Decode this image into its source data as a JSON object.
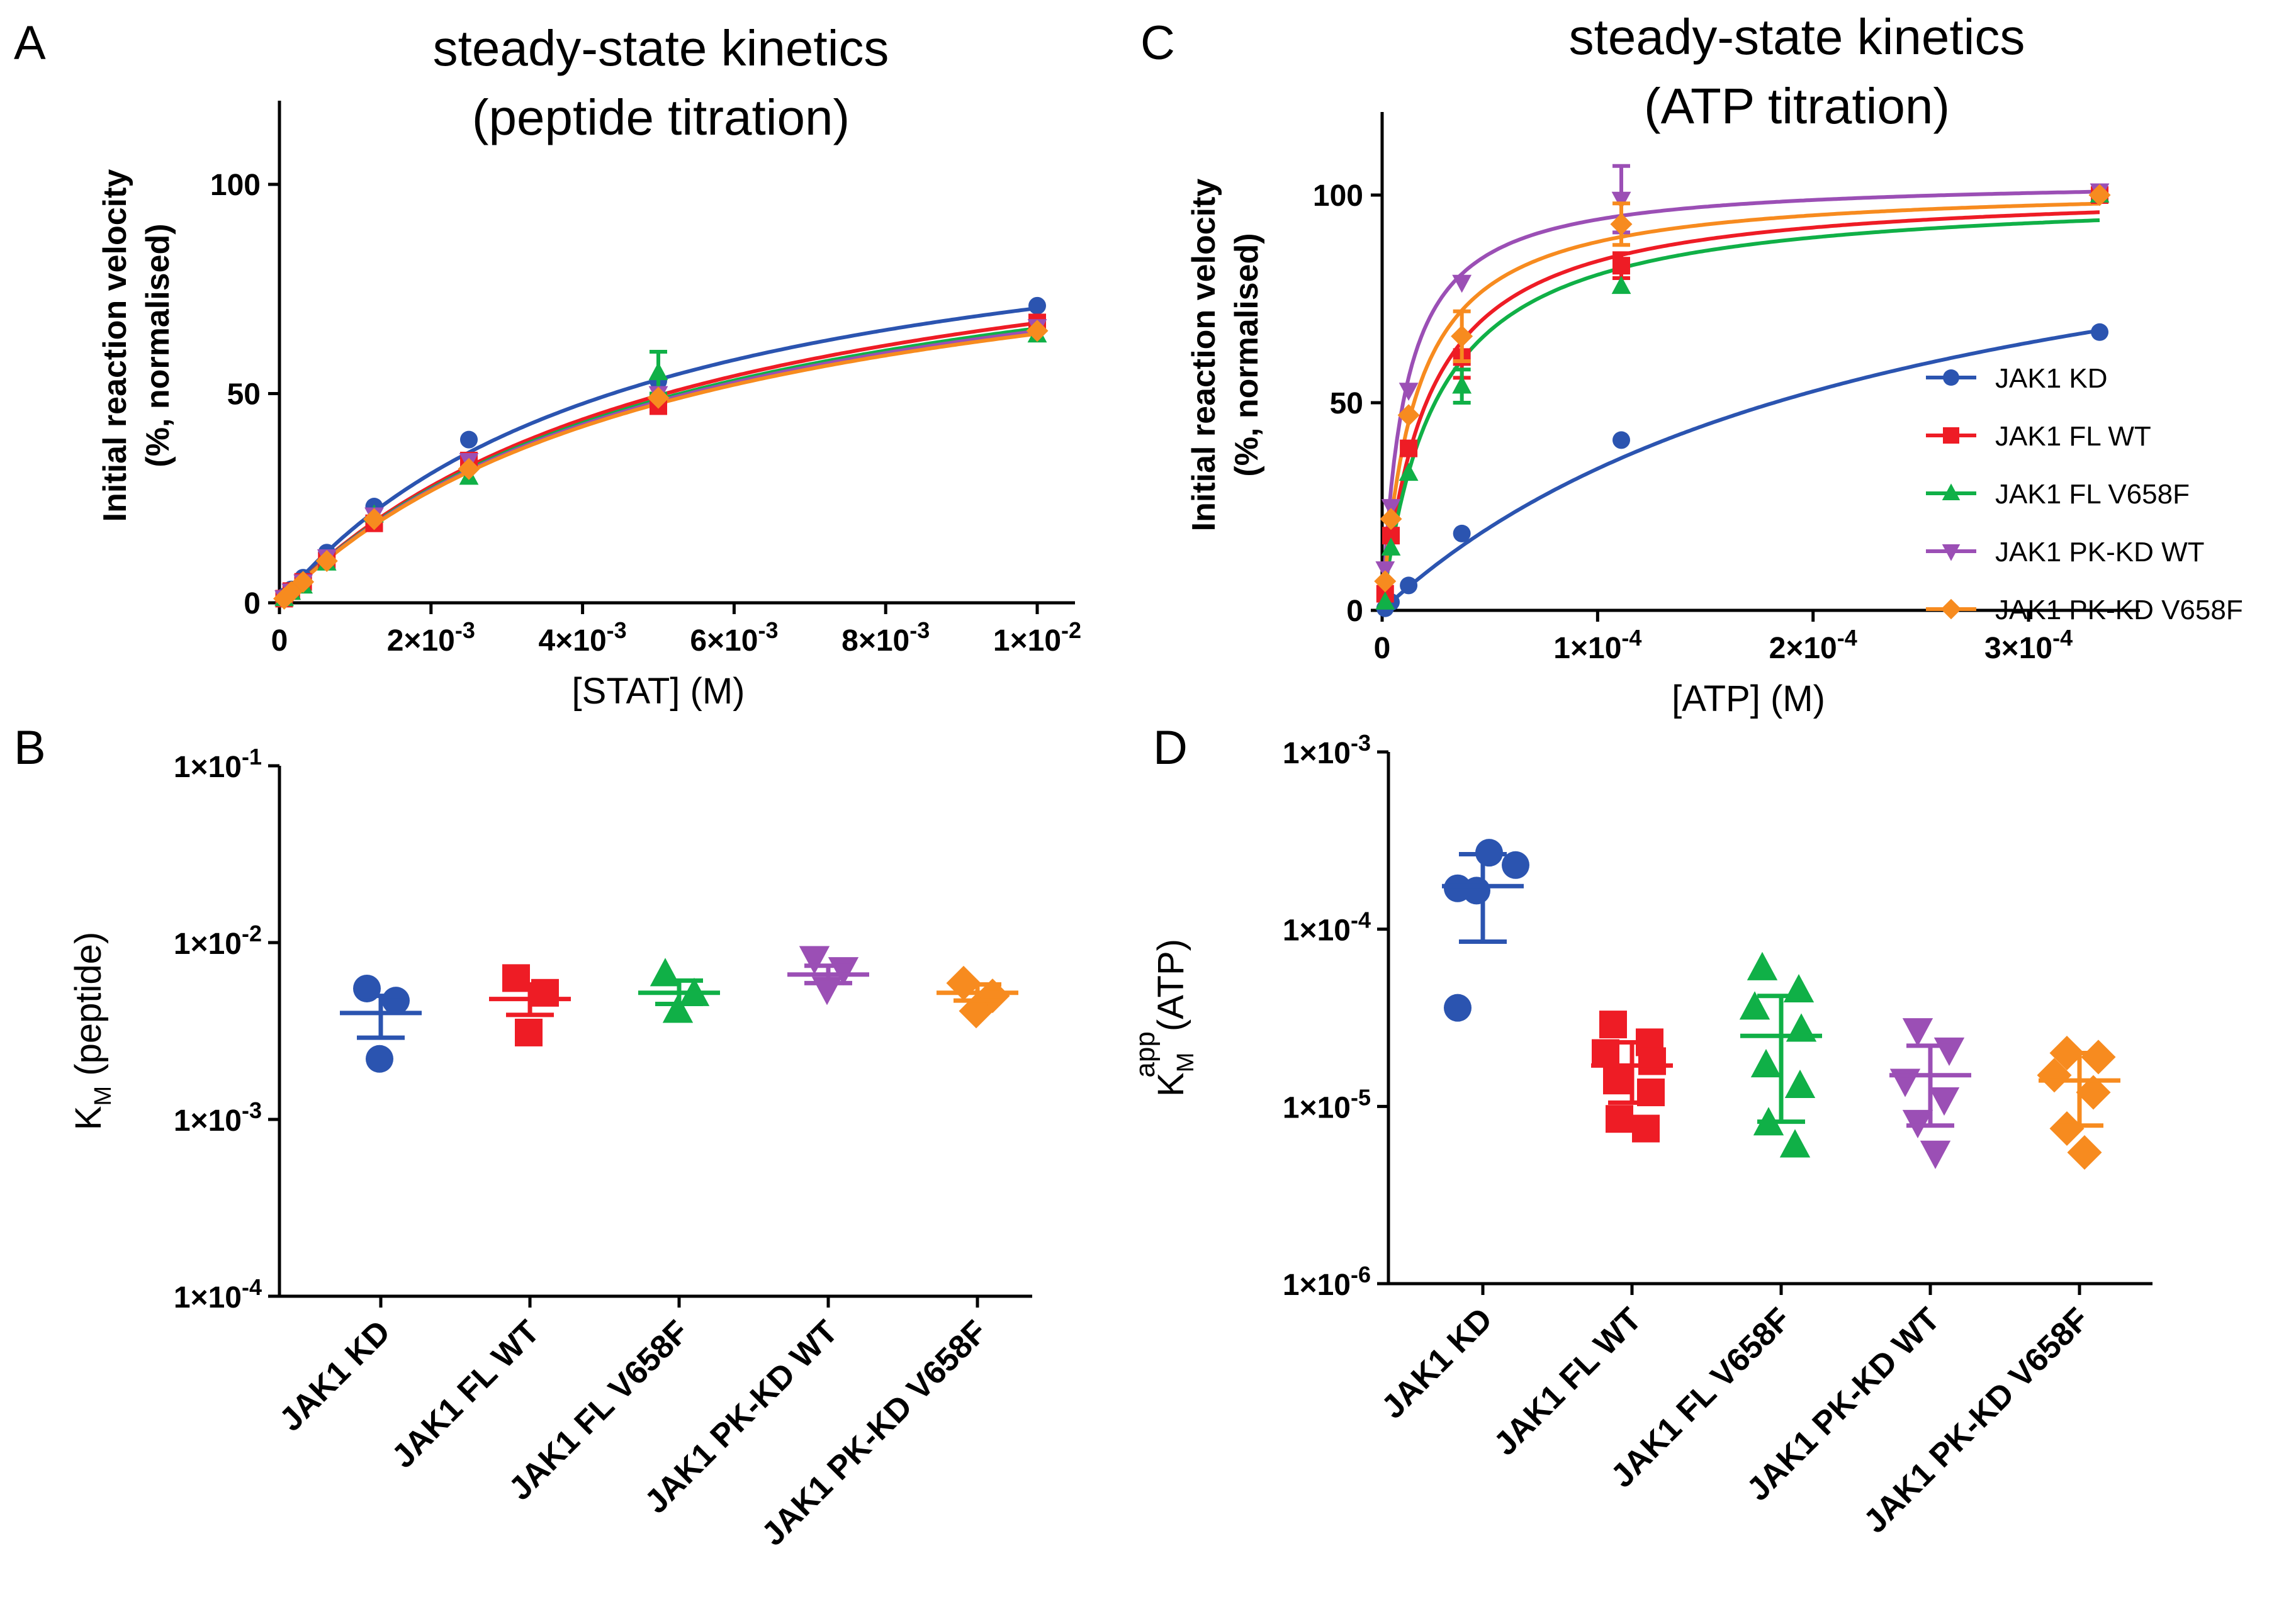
{
  "colors": {
    "JAK1 KD": "#2b54b0",
    "JAK1 FL WT": "#ee1c25",
    "JAK1 FL V658F": "#10b047",
    "JAK1 PK-KD WT": "#9b4fb5",
    "JAK1 PK-KD V658F": "#f78b1f"
  },
  "chart_data": [
    {
      "panel": "A",
      "type": "scatter",
      "title_lines": [
        "steady-state kinetics",
        "(peptide titration)"
      ],
      "xlabel": "[STAT] (M)",
      "ylabel_lines": [
        "Initial reaction velocity",
        "(%, normalised)"
      ],
      "xlim": [
        0,
        0.01
      ],
      "ylim": [
        0,
        120
      ],
      "xticks": [
        0,
        0.002,
        0.004,
        0.006,
        0.008,
        0.01
      ],
      "xtick_labels": [
        {
          "m": "0",
          "e": ""
        },
        {
          "m": "2×10",
          "e": "-3"
        },
        {
          "m": "4×10",
          "e": "-3"
        },
        {
          "m": "6×10",
          "e": "-3"
        },
        {
          "m": "8×10",
          "e": "-3"
        },
        {
          "m": "1×10",
          "e": "-2"
        }
      ],
      "yticks": [
        0,
        50,
        100
      ],
      "ytick_labels": [
        "0",
        "50",
        "100"
      ],
      "fit": "michaelis-menten",
      "series": [
        {
          "name": "JAK1 KD",
          "marker": "circle",
          "vmax": 103.5,
          "km": 0.0047,
          "x": [
            6.25e-05,
            0.00015625,
            0.0003125,
            0.000625,
            0.00125,
            0.0025,
            0.005,
            0.01
          ],
          "y": [
            1.5,
            3.2,
            6,
            12,
            23,
            39,
            53,
            71
          ]
        },
        {
          "name": "JAK1 FL WT",
          "marker": "square",
          "vmax": 103,
          "km": 0.0054,
          "x": [
            6.25e-05,
            0.00015625,
            0.0003125,
            0.000625,
            0.00125,
            0.0025,
            0.005,
            0.01
          ],
          "y": [
            1,
            2.8,
            5,
            10,
            19,
            34,
            47,
            67
          ]
        },
        {
          "name": "JAK1 FL V658F",
          "marker": "triangle",
          "vmax": 101,
          "km": 0.0054,
          "x": [
            6.25e-05,
            0.00015625,
            0.0003125,
            0.000625,
            0.00125,
            0.0025,
            0.005,
            0.01
          ],
          "y": [
            1,
            2.5,
            4,
            9.5,
            21,
            30,
            55,
            64
          ],
          "err": [
            0,
            0,
            0,
            0,
            0,
            0,
            5,
            0
          ]
        },
        {
          "name": "JAK1 PK-KD WT",
          "marker": "triangle-down",
          "vmax": 100,
          "km": 0.0054,
          "x": [
            6.25e-05,
            0.00015625,
            0.0003125,
            0.000625,
            0.00125,
            0.0025,
            0.005,
            0.01
          ],
          "y": [
            1.2,
            2.8,
            5,
            11,
            21,
            34,
            50,
            66
          ]
        },
        {
          "name": "JAK1 PK-KD V658F",
          "marker": "diamond",
          "vmax": 99,
          "km": 0.0054,
          "x": [
            6.25e-05,
            0.00015625,
            0.0003125,
            0.000625,
            0.00125,
            0.0025,
            0.005,
            0.01
          ],
          "y": [
            1,
            2.6,
            5,
            10,
            20,
            32,
            49,
            65
          ]
        }
      ]
    },
    {
      "panel": "B",
      "type": "scatter",
      "subtype": "category-dot",
      "ylog": true,
      "ylim": [
        0.0001,
        0.1
      ],
      "yticks": [
        0.0001,
        0.001,
        0.01,
        0.1
      ],
      "ytick_labels": [
        {
          "m": "1×10",
          "e": "-4"
        },
        {
          "m": "1×10",
          "e": "-3"
        },
        {
          "m": "1×10",
          "e": "-2"
        },
        {
          "m": "1×10",
          "e": "-1"
        }
      ],
      "ylabel": {
        "base": "K",
        "sub": "M",
        "rest": " (peptide)"
      },
      "categories": [
        "JAK1 KD",
        "JAK1 FL WT",
        "JAK1 FL V658F",
        "JAK1 PK-KD WT",
        "JAK1 PK-KD V658F"
      ],
      "series": [
        {
          "name": "JAK1 KD",
          "marker": "circle",
          "points": [
            0.0055,
            0.0047,
            0.0022
          ],
          "mean": 0.004,
          "sd_low": 0.0029,
          "sd_high": 0.005
        },
        {
          "name": "JAK1 FL WT",
          "marker": "square",
          "points": [
            0.0063,
            0.0052,
            0.0031
          ],
          "mean": 0.0048,
          "sd_low": 0.0039,
          "sd_high": 0.0058
        },
        {
          "name": "JAK1 FL V658F",
          "marker": "triangle",
          "points": [
            0.0066,
            0.0051,
            0.0041
          ],
          "mean": 0.0052,
          "sd_low": 0.0045,
          "sd_high": 0.0061
        },
        {
          "name": "JAK1 PK-KD WT",
          "marker": "triangle-down",
          "points": [
            0.0082,
            0.0071,
            0.0055
          ],
          "mean": 0.0066,
          "sd_low": 0.0059,
          "sd_high": 0.0074
        },
        {
          "name": "JAK1 PK-KD V658F",
          "marker": "diamond",
          "points": [
            0.0059,
            0.005,
            0.0041
          ],
          "mean": 0.0052,
          "sd_low": 0.0047,
          "sd_high": 0.0058
        }
      ]
    },
    {
      "panel": "C",
      "type": "scatter",
      "title_lines": [
        "steady-state kinetics",
        "(ATP titration)"
      ],
      "xlabel": "[ATP] (M)",
      "ylabel_lines": [
        "Initial reaction velocity",
        "(%, normalised)"
      ],
      "xlim": [
        0,
        0.00034
      ],
      "ylim": [
        0,
        120
      ],
      "xticks": [
        0,
        0.0001,
        0.0002,
        0.0003
      ],
      "xtick_labels": [
        {
          "m": "0",
          "e": ""
        },
        {
          "m": "1×10",
          "e": "-4"
        },
        {
          "m": "2×10",
          "e": "-4"
        },
        {
          "m": "3×10",
          "e": "-4"
        }
      ],
      "yticks": [
        0,
        50,
        100
      ],
      "ytick_labels": [
        "0",
        "50",
        "100"
      ],
      "fit": "michaelis-menten",
      "legend_position": "lower-right",
      "series": [
        {
          "name": "JAK1 KD",
          "marker": "circle",
          "vmax": 116,
          "km": 0.00024,
          "x": [
            1.4e-06,
            4.1e-06,
            1.23e-05,
            3.7e-05,
            0.000111,
            0.000333
          ],
          "y": [
            0.5,
            2,
            6,
            18.5,
            41,
            67
          ]
        },
        {
          "name": "JAK1 FL WT",
          "marker": "square",
          "vmax": 102,
          "km": 2.13e-05,
          "x": [
            1.4e-06,
            4.1e-06,
            1.23e-05,
            3.7e-05,
            0.000111,
            0.000333
          ],
          "y": [
            4,
            18,
            39,
            61,
            83,
            100
          ],
          "err": [
            0,
            0,
            0,
            5,
            3,
            0
          ]
        },
        {
          "name": "JAK1 FL V658F",
          "marker": "triangle",
          "vmax": 101,
          "km": 2.5e-05,
          "x": [
            1.4e-06,
            4.1e-06,
            1.23e-05,
            3.7e-05,
            0.000111,
            0.000333
          ],
          "y": [
            2,
            15,
            33,
            54,
            78,
            100
          ],
          "err": [
            0,
            0,
            0,
            4,
            0,
            0
          ]
        },
        {
          "name": "JAK1 PK-KD WT",
          "marker": "triangle-down",
          "vmax": 104,
          "km": 1.05e-05,
          "x": [
            1.4e-06,
            4.1e-06,
            1.23e-05,
            3.7e-05,
            0.000111,
            0.000333
          ],
          "y": [
            10,
            25,
            53,
            79,
            99,
            101
          ],
          "err": [
            0,
            0,
            0,
            0,
            8,
            0
          ]
        },
        {
          "name": "JAK1 PK-KD V658F",
          "marker": "diamond",
          "vmax": 102.5,
          "km": 1.55e-05,
          "x": [
            1.4e-06,
            4.1e-06,
            1.23e-05,
            3.7e-05,
            0.000111,
            0.000333
          ],
          "y": [
            7,
            22,
            47,
            66,
            93,
            100
          ],
          "err": [
            0,
            0,
            0,
            6,
            5,
            0
          ]
        }
      ]
    },
    {
      "panel": "D",
      "type": "scatter",
      "subtype": "category-dot",
      "ylog": true,
      "ylim": [
        1e-06,
        0.001
      ],
      "yticks": [
        1e-06,
        1e-05,
        0.0001,
        0.001
      ],
      "ytick_labels": [
        {
          "m": "1×10",
          "e": "-6"
        },
        {
          "m": "1×10",
          "e": "-5"
        },
        {
          "m": "1×10",
          "e": "-4"
        },
        {
          "m": "1×10",
          "e": "-3"
        }
      ],
      "ylabel": {
        "base": "K",
        "sub": "M",
        "sup": "app",
        "rest": "(ATP)"
      },
      "categories": [
        "JAK1 KD",
        "JAK1 FL WT",
        "JAK1 FL V658F",
        "JAK1 PK-KD WT",
        "JAK1 PK-KD V658F"
      ],
      "series": [
        {
          "name": "JAK1 KD",
          "marker": "circle",
          "points": [
            0.00027,
            0.00023,
            0.00017,
            0.000165,
            3.6e-05
          ],
          "mean": 0.000175,
          "sd_low": 8.5e-05,
          "sd_high": 0.000265
        },
        {
          "name": "JAK1 FL WT",
          "marker": "square",
          "points": [
            2.9e-05,
            2.3e-05,
            2e-05,
            1.8e-05,
            1.4e-05,
            1.2e-05,
            8.5e-06,
            7.5e-06
          ],
          "mean": 1.7e-05,
          "sd_low": 1.05e-05,
          "sd_high": 2.3e-05
        },
        {
          "name": "JAK1 FL V658F",
          "marker": "triangle",
          "points": [
            6e-05,
            4.5e-05,
            3.6e-05,
            2.7e-05,
            1.7e-05,
            1.3e-05,
            8e-06,
            6e-06
          ],
          "mean": 2.5e-05,
          "sd_low": 8.2e-06,
          "sd_high": 4.2e-05
        },
        {
          "name": "JAK1 PK-KD WT",
          "marker": "triangle-down",
          "points": [
            2.7e-05,
            2.1e-05,
            1.4e-05,
            1.1e-05,
            8.2e-06,
            5.5e-06
          ],
          "mean": 1.5e-05,
          "sd_low": 7.8e-06,
          "sd_high": 2.2e-05
        },
        {
          "name": "JAK1 PK-KD V658F",
          "marker": "diamond",
          "points": [
            2e-05,
            1.9e-05,
            1.5e-05,
            1.2e-05,
            7.5e-06,
            5.5e-06
          ],
          "mean": 1.4e-05,
          "sd_low": 7.8e-06,
          "sd_high": 2e-05
        }
      ]
    }
  ],
  "panel_labels": [
    "A",
    "B",
    "C",
    "D"
  ]
}
